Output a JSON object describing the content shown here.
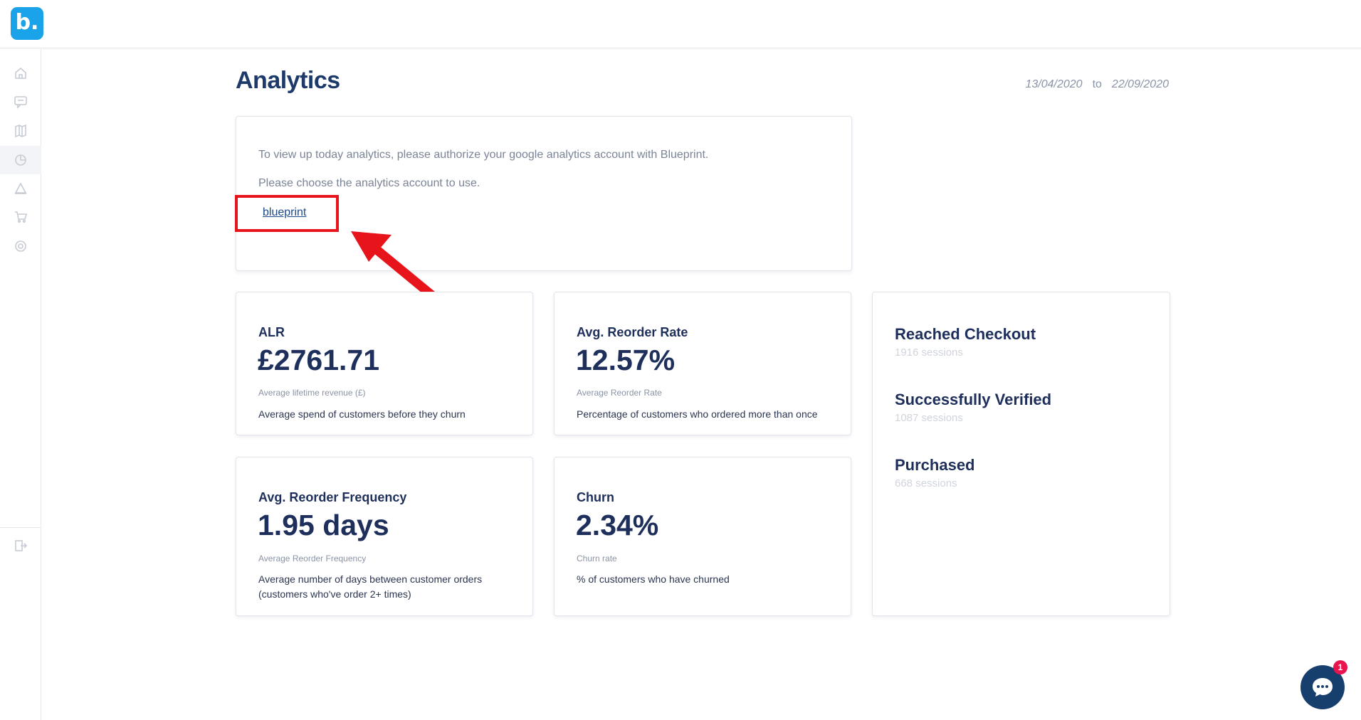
{
  "app": {
    "logo_text": "b."
  },
  "sidebar": {
    "items": [
      {
        "icon": "home-icon"
      },
      {
        "icon": "messages-icon"
      },
      {
        "icon": "catalog-icon"
      },
      {
        "icon": "analytics-icon",
        "active": true
      },
      {
        "icon": "campaigns-icon"
      },
      {
        "icon": "cart-icon"
      },
      {
        "icon": "settings-icon"
      }
    ],
    "logout_icon": "logout-icon"
  },
  "header": {
    "title": "Analytics",
    "date_from": "13/04/2020",
    "date_to_label": "to",
    "date_to": "22/09/2020"
  },
  "auth_card": {
    "line1": "To view up today analytics, please authorize your google analytics account with Blueprint.",
    "line2": "Please choose the analytics account to use.",
    "account_link": "blueprint"
  },
  "metrics": [
    {
      "title": "ALR",
      "value": "£2761.71",
      "sub": "Average lifetime revenue (£)",
      "desc": "Average spend of customers before they churn"
    },
    {
      "title": "Avg. Reorder Rate",
      "value": "12.57%",
      "sub": "Average Reorder Rate",
      "desc": "Percentage of customers who ordered more than once"
    },
    {
      "title": "Avg. Reorder Frequency",
      "value": "1.95 days",
      "sub": "Average Reorder Frequency",
      "desc": "Average number of days between customer orders (customers who've order 2+ times)"
    },
    {
      "title": "Churn",
      "value": "2.34%",
      "sub": "Churn rate",
      "desc": "% of customers who have churned"
    }
  ],
  "funnel": [
    {
      "title": "Reached Checkout",
      "sessions": "1916 sessions"
    },
    {
      "title": "Successfully Verified",
      "sessions": "1087 sessions"
    },
    {
      "title": "Purchased",
      "sessions": "668 sessions"
    }
  ],
  "chat": {
    "badge_count": "1"
  },
  "colors": {
    "brand": "#1aa3e8",
    "title": "#1d3a6b",
    "annotation": "#e8141b",
    "chat": "#173f6e",
    "badge": "#e8144d"
  }
}
